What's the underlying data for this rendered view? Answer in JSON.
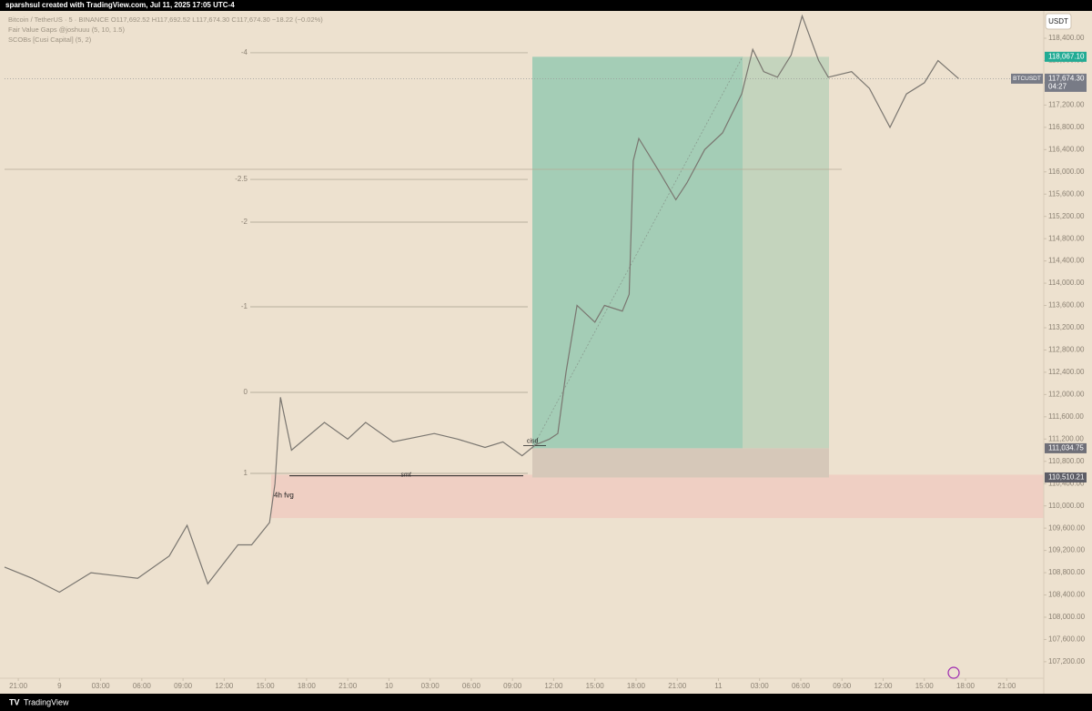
{
  "header": "sparshsul created with TradingView.com, Jul 11, 2025 17:05 UTC-4",
  "footer": "TradingView",
  "legend_lines": [
    "Bitcoin / TetherUS · 5 · BINANCE  O117,692.52  H117,692.52  L117,674.30  C117,674.30  −18.22 (−0.02%)",
    "Fair Value Gaps @joshuuu (5, 10, 1.5)",
    "SCOBs [Cusi Capital] (5, 2)"
  ],
  "chart_data": {
    "type": "line",
    "currency": "USDT",
    "xlim": [
      -1,
      74.7
    ],
    "ylim": [
      106904,
      118891
    ],
    "xticks": [
      {
        "value": 0,
        "label": "21:00"
      },
      {
        "value": 3,
        "label": "9"
      },
      {
        "value": 6,
        "label": "03:00"
      },
      {
        "value": 9,
        "label": "06:00"
      },
      {
        "value": 12,
        "label": "09:00"
      },
      {
        "value": 15,
        "label": "12:00"
      },
      {
        "value": 18,
        "label": "15:00"
      },
      {
        "value": 21,
        "label": "18:00"
      },
      {
        "value": 24,
        "label": "21:00"
      },
      {
        "value": 27,
        "label": "10"
      },
      {
        "value": 30,
        "label": "03:00"
      },
      {
        "value": 33,
        "label": "06:00"
      },
      {
        "value": 36,
        "label": "09:00"
      },
      {
        "value": 39,
        "label": "12:00"
      },
      {
        "value": 42,
        "label": "15:00"
      },
      {
        "value": 45,
        "label": "18:00"
      },
      {
        "value": 48,
        "label": "21:00"
      },
      {
        "value": 51,
        "label": "11"
      },
      {
        "value": 54,
        "label": "03:00"
      },
      {
        "value": 57,
        "label": "06:00"
      },
      {
        "value": 60,
        "label": "09:00"
      },
      {
        "value": 63,
        "label": "12:00"
      },
      {
        "value": 66,
        "label": "15:00"
      },
      {
        "value": 69,
        "label": "18:00"
      },
      {
        "value": 72,
        "label": "21:00"
      }
    ],
    "yticks": [
      {
        "value": 118400,
        "label": "118,400.00"
      },
      {
        "value": 118000,
        "label": "118,000.00"
      },
      {
        "value": 117600,
        "label": "117,600.00"
      },
      {
        "value": 117200,
        "label": "117,200.00"
      },
      {
        "value": 116800,
        "label": "116,800.00"
      },
      {
        "value": 116400,
        "label": "116,400.00"
      },
      {
        "value": 116000,
        "label": "116,000.00"
      },
      {
        "value": 115600,
        "label": "115,600.00"
      },
      {
        "value": 115200,
        "label": "115,200.00"
      },
      {
        "value": 114800,
        "label": "114,800.00"
      },
      {
        "value": 114400,
        "label": "114,400.00"
      },
      {
        "value": 114000,
        "label": "114,000.00"
      },
      {
        "value": 113600,
        "label": "113,600.00"
      },
      {
        "value": 113200,
        "label": "113,200.00"
      },
      {
        "value": 112800,
        "label": "112,800.00"
      },
      {
        "value": 112400,
        "label": "112,400.00"
      },
      {
        "value": 112000,
        "label": "112,000.00"
      },
      {
        "value": 111600,
        "label": "111,600.00"
      },
      {
        "value": 111200,
        "label": "111,200.00"
      },
      {
        "value": 110800,
        "label": "110,800.00"
      },
      {
        "value": 110400,
        "label": "110,400.00"
      },
      {
        "value": 110000,
        "label": "110,000.00"
      },
      {
        "value": 109600,
        "label": "109,600.00"
      },
      {
        "value": 109200,
        "label": "109,200.00"
      },
      {
        "value": 108800,
        "label": "108,800.00"
      },
      {
        "value": 108400,
        "label": "108,400.00"
      },
      {
        "value": 108000,
        "label": "108,000.00"
      },
      {
        "value": 107600,
        "label": "107,600.00"
      },
      {
        "value": 107200,
        "label": "107,200.00"
      }
    ],
    "series": [
      {
        "name": "BTCUSDT",
        "color": "#7a7670",
        "x": [
          -1,
          1,
          3,
          5.3,
          8.7,
          11,
          12.3,
          13.8,
          16,
          17,
          18.3,
          18.7,
          19.1,
          19.9,
          22.3,
          24,
          25.3,
          27.3,
          30.3,
          32,
          34,
          35.3,
          36.7,
          37.7,
          38.7,
          39.3,
          39.9,
          40.7,
          42,
          42.7,
          44,
          44.5,
          44.8,
          45.2,
          46.7,
          47.9,
          48.7,
          50,
          51.3,
          52.7,
          53.5,
          54.3,
          55.3,
          56.3,
          57.1,
          58.3,
          59,
          60.7,
          62,
          63.5,
          64.7,
          66,
          67,
          68.5
        ],
        "values": [
          108900,
          108700,
          108450,
          108800,
          108700,
          109100,
          109650,
          108600,
          109300,
          109300,
          109700,
          110400,
          111950,
          111000,
          111500,
          111200,
          111500,
          111150,
          111300,
          111200,
          111050,
          111150,
          110900,
          111100,
          111200,
          111300,
          112400,
          113600,
          113300,
          113600,
          113500,
          113800,
          116200,
          116600,
          116000,
          115500,
          115800,
          116400,
          116700,
          117400,
          118200,
          117800,
          117700,
          118100,
          118800,
          118000,
          117700,
          117800,
          117500,
          116800,
          117400,
          117600,
          118000,
          117674.3
        ]
      }
    ],
    "price_badges": [
      {
        "value": 118067.1,
        "label": "118,067.10",
        "color": "#22ab94"
      },
      {
        "value": 117674.3,
        "label": "117,674.30",
        "countdown": "04:27",
        "color": "#787b86"
      },
      {
        "value": 111034.75,
        "label": "111,034.75",
        "color": "#6f6f78"
      },
      {
        "value": 110510.21,
        "label": "110,510.21",
        "color": "#5d5d66"
      }
    ],
    "fib_levels": [
      {
        "value": 118140,
        "label": "-4"
      },
      {
        "value": 115865,
        "label": "-2.5"
      },
      {
        "value": 115097,
        "label": "-2"
      },
      {
        "value": 113576,
        "label": "-1"
      },
      {
        "value": 112039,
        "label": "0"
      },
      {
        "value": 110583,
        "label": "1"
      }
    ],
    "hlines": [
      116045
    ],
    "zones": [
      {
        "label": "4h fvg",
        "range": [
          109782,
          110560
        ],
        "color": "#efcfc3"
      }
    ],
    "annotations": [
      {
        "label": "smt",
        "value": 110540
      },
      {
        "label": "cisd",
        "value": 111080
      }
    ]
  }
}
